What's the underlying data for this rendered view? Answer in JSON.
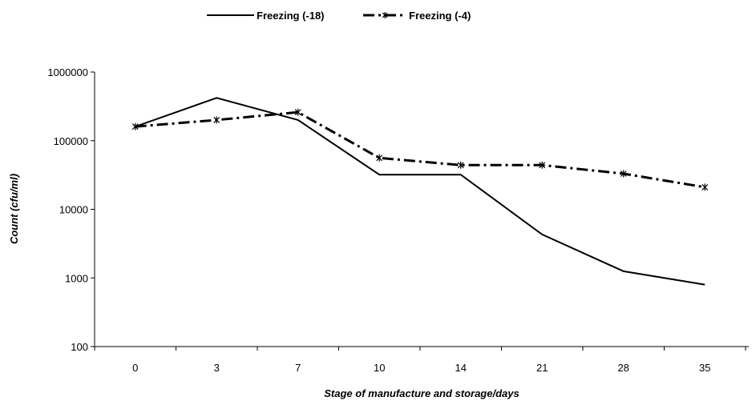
{
  "chart_data": {
    "type": "line",
    "title": "",
    "xlabel": "Stage of manufacture and storage/days",
    "ylabel": "Count (cfu/ml)",
    "y_scale": "log",
    "ylim": [
      100,
      1000000
    ],
    "y_ticks": [
      "100",
      "1000",
      "10000",
      "100000",
      "1000000"
    ],
    "categories": [
      "0",
      "3",
      "7",
      "10",
      "14",
      "21",
      "28",
      "35"
    ],
    "legend_position": "top-center",
    "grid": false,
    "series": [
      {
        "name": "Freezing (-18)",
        "style": "solid",
        "color": "#000000",
        "values": [
          160000,
          420000,
          200000,
          32000,
          32000,
          4300,
          1250,
          800
        ]
      },
      {
        "name": "Freezing (-4)",
        "style": "dash-dot",
        "marker": "asterisk",
        "color": "#000000",
        "values": [
          160000,
          200000,
          260000,
          56000,
          44000,
          44000,
          33000,
          21000
        ]
      }
    ]
  }
}
